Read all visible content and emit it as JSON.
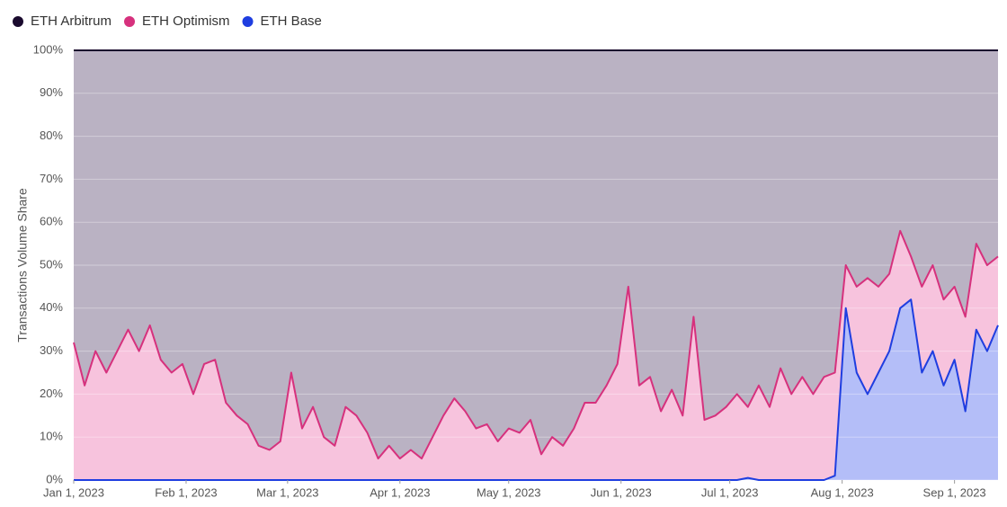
{
  "chart_data": {
    "type": "stacked_area",
    "y_label": "Transactions Volume Share",
    "x": [
      "2023-01-01",
      "2023-01-04",
      "2023-01-07",
      "2023-01-10",
      "2023-01-13",
      "2023-01-16",
      "2023-01-19",
      "2023-01-22",
      "2023-01-25",
      "2023-01-28",
      "2023-01-31",
      "2023-02-03",
      "2023-02-06",
      "2023-02-09",
      "2023-02-12",
      "2023-02-15",
      "2023-02-18",
      "2023-02-21",
      "2023-02-24",
      "2023-02-27",
      "2023-03-02",
      "2023-03-05",
      "2023-03-08",
      "2023-03-11",
      "2023-03-14",
      "2023-03-17",
      "2023-03-20",
      "2023-03-23",
      "2023-03-26",
      "2023-03-29",
      "2023-04-01",
      "2023-04-04",
      "2023-04-07",
      "2023-04-10",
      "2023-04-13",
      "2023-04-16",
      "2023-04-19",
      "2023-04-22",
      "2023-04-25",
      "2023-04-28",
      "2023-05-01",
      "2023-05-04",
      "2023-05-07",
      "2023-05-10",
      "2023-05-13",
      "2023-05-16",
      "2023-05-19",
      "2023-05-22",
      "2023-05-25",
      "2023-05-28",
      "2023-05-31",
      "2023-06-03",
      "2023-06-06",
      "2023-06-09",
      "2023-06-12",
      "2023-06-15",
      "2023-06-18",
      "2023-06-21",
      "2023-06-24",
      "2023-06-27",
      "2023-06-30",
      "2023-07-03",
      "2023-07-06",
      "2023-07-09",
      "2023-07-12",
      "2023-07-15",
      "2023-07-18",
      "2023-07-21",
      "2023-07-24",
      "2023-07-27",
      "2023-07-30",
      "2023-08-02",
      "2023-08-05",
      "2023-08-08",
      "2023-08-11",
      "2023-08-14",
      "2023-08-17",
      "2023-08-20",
      "2023-08-23",
      "2023-08-26",
      "2023-08-29",
      "2023-09-01",
      "2023-09-04",
      "2023-09-07",
      "2023-09-10",
      "2023-09-13"
    ],
    "series": [
      {
        "name": "ETH Base",
        "color": "#1f3ee0",
        "fill": "#b4bef8",
        "values": [
          0,
          0,
          0,
          0,
          0,
          0,
          0,
          0,
          0,
          0,
          0,
          0,
          0,
          0,
          0,
          0,
          0,
          0,
          0,
          0,
          0,
          0,
          0,
          0,
          0,
          0,
          0,
          0,
          0,
          0,
          0,
          0,
          0,
          0,
          0,
          0,
          0,
          0,
          0,
          0,
          0,
          0,
          0,
          0,
          0,
          0,
          0,
          0,
          0,
          0,
          0,
          0,
          0,
          0,
          0,
          0,
          0,
          0,
          0,
          0,
          0,
          0,
          0.5,
          0,
          0,
          0,
          0,
          0,
          0,
          0,
          1,
          40,
          25,
          20,
          25,
          30,
          40,
          42,
          25,
          30,
          22,
          28,
          16,
          35,
          30,
          36
        ]
      },
      {
        "name": "ETH Optimism",
        "color": "#d6317d",
        "fill": "#f7c3dd",
        "values": [
          32,
          22,
          30,
          25,
          30,
          35,
          30,
          36,
          28,
          25,
          27,
          20,
          27,
          28,
          18,
          15,
          13,
          8,
          7,
          9,
          25,
          12,
          17,
          10,
          8,
          17,
          15,
          11,
          5,
          8,
          5,
          7,
          5,
          10,
          15,
          19,
          16,
          12,
          13,
          9,
          12,
          11,
          14,
          6,
          10,
          8,
          12,
          18,
          18,
          22,
          27,
          45,
          22,
          24,
          16,
          21,
          15,
          38,
          14,
          15,
          17,
          20,
          16.5,
          22,
          17,
          26,
          20,
          24,
          20,
          24,
          24,
          10,
          20,
          27,
          20,
          18,
          18,
          10,
          20,
          20,
          20,
          17,
          22,
          20,
          20,
          16
        ]
      },
      {
        "name": "ETH Arbitrum",
        "color": "#1a0a2e",
        "fill": "#bab2c3",
        "values": [
          68,
          78,
          70,
          75,
          70,
          65,
          70,
          64,
          72,
          75,
          73,
          80,
          73,
          72,
          82,
          85,
          87,
          92,
          93,
          91,
          75,
          88,
          83,
          90,
          92,
          83,
          85,
          89,
          95,
          92,
          95,
          93,
          95,
          90,
          85,
          81,
          84,
          88,
          87,
          91,
          88,
          89,
          86,
          94,
          90,
          92,
          88,
          82,
          82,
          78,
          73,
          55,
          78,
          76,
          84,
          79,
          85,
          62,
          86,
          85,
          83,
          80,
          83,
          78,
          83,
          74,
          80,
          76,
          80,
          76,
          75,
          50,
          55,
          53,
          55,
          52,
          42,
          48,
          55,
          50,
          58,
          55,
          62,
          45,
          50,
          48
        ]
      }
    ],
    "legend_order": [
      "ETH Arbitrum",
      "ETH Optimism",
      "ETH Base"
    ],
    "xlim": [
      "2023-01-01",
      "2023-09-13"
    ],
    "xticks": [
      {
        "value": "2023-01-01",
        "label": "Jan 1, 2023"
      },
      {
        "value": "2023-02-01",
        "label": "Feb 1, 2023"
      },
      {
        "value": "2023-03-01",
        "label": "Mar 1, 2023"
      },
      {
        "value": "2023-04-01",
        "label": "Apr 1, 2023"
      },
      {
        "value": "2023-05-01",
        "label": "May 1, 2023"
      },
      {
        "value": "2023-06-01",
        "label": "Jun 1, 2023"
      },
      {
        "value": "2023-07-01",
        "label": "Jul 1, 2023"
      },
      {
        "value": "2023-08-01",
        "label": "Aug 1, 2023"
      },
      {
        "value": "2023-09-01",
        "label": "Sep 1, 2023"
      }
    ],
    "ylim": [
      0,
      100
    ],
    "yticks": [
      {
        "value": 0,
        "label": "0%"
      },
      {
        "value": 10,
        "label": "10%"
      },
      {
        "value": 20,
        "label": "20%"
      },
      {
        "value": 30,
        "label": "30%"
      },
      {
        "value": 40,
        "label": "40%"
      },
      {
        "value": 50,
        "label": "50%"
      },
      {
        "value": 60,
        "label": "60%"
      },
      {
        "value": 70,
        "label": "70%"
      },
      {
        "value": 80,
        "label": "80%"
      },
      {
        "value": 90,
        "label": "90%"
      },
      {
        "value": 100,
        "label": "100%"
      }
    ],
    "grid": true,
    "legend": "top-left"
  }
}
